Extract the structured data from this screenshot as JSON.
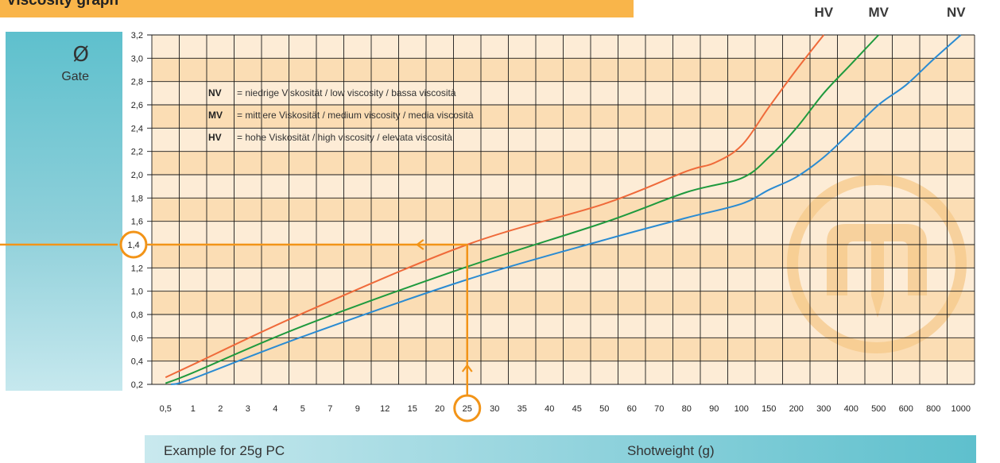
{
  "title": "Viscosity graph",
  "gate": {
    "symbol": "Ø",
    "label": "Gate"
  },
  "bottom": {
    "example": "Example for 25g PC",
    "axis_title": "Shotweight (g)"
  },
  "colors": {
    "hv": "#ef6a3a",
    "mv": "#1f9a3e",
    "nv": "#2a8bd2",
    "marker": "#f29418",
    "band_light": "#fdecd6",
    "band_dark": "#fbddb4",
    "watermark": "#f6c98a"
  },
  "chart_data": {
    "type": "line",
    "title": "Viscosity graph",
    "xlabel": "Shotweight (g)",
    "ylabel": "Ø Gate",
    "x_ticks": [
      "0,5",
      "1",
      "2",
      "3",
      "4",
      "5",
      "7",
      "9",
      "12",
      "15",
      "20",
      "25",
      "30",
      "35",
      "40",
      "45",
      "50",
      "60",
      "70",
      "80",
      "90",
      "100",
      "150",
      "200",
      "300",
      "400",
      "500",
      "600",
      "800",
      "1000"
    ],
    "y_ticks": [
      "0,2",
      "0,4",
      "0,6",
      "0,8",
      "1,0",
      "1,2",
      "1,4",
      "1,6",
      "1,8",
      "2,0",
      "2,2",
      "2,4",
      "2,6",
      "2,8",
      "3,0",
      "3,2"
    ],
    "ylim": [
      0.2,
      3.2
    ],
    "grid": true,
    "top_labels": [
      {
        "text": "HV",
        "x": 300
      },
      {
        "text": "MV",
        "x": 500
      },
      {
        "text": "NV",
        "x": 1000
      }
    ],
    "legend": [
      {
        "key": "NV",
        "text": "= niedrige Viskosität / low viscosity / bassa viscosità"
      },
      {
        "key": "MV",
        "text": "= mittlere Viskosität / medium viscosity / media viscosità"
      },
      {
        "key": "HV",
        "text": "= hohe Viskosität / high viscosity / elevata viscosità"
      }
    ],
    "series": [
      {
        "name": "HV",
        "color": "#ef6a3a",
        "points": [
          [
            0.5,
            0.26
          ],
          [
            1,
            0.37
          ],
          [
            5,
            0.81
          ],
          [
            25,
            1.4
          ],
          [
            50,
            1.75
          ],
          [
            80,
            2.03
          ],
          [
            90,
            2.1
          ],
          [
            100,
            2.25
          ],
          [
            150,
            2.58
          ],
          [
            200,
            2.9
          ],
          [
            300,
            3.2
          ]
        ]
      },
      {
        "name": "MV",
        "color": "#1f9a3e",
        "points": [
          [
            0.5,
            0.21
          ],
          [
            1,
            0.3
          ],
          [
            5,
            0.7
          ],
          [
            25,
            1.21
          ],
          [
            50,
            1.59
          ],
          [
            80,
            1.85
          ],
          [
            100,
            1.97
          ],
          [
            150,
            2.15
          ],
          [
            200,
            2.4
          ],
          [
            300,
            2.7
          ],
          [
            400,
            2.95
          ],
          [
            500,
            3.2
          ]
        ]
      },
      {
        "name": "NV",
        "color": "#2a8bd2",
        "points": [
          [
            0.6,
            0.2
          ],
          [
            1,
            0.25
          ],
          [
            5,
            0.61
          ],
          [
            25,
            1.1
          ],
          [
            50,
            1.44
          ],
          [
            80,
            1.63
          ],
          [
            100,
            1.75
          ],
          [
            150,
            1.87
          ],
          [
            200,
            1.98
          ],
          [
            300,
            2.15
          ],
          [
            400,
            2.37
          ],
          [
            500,
            2.6
          ],
          [
            600,
            2.77
          ],
          [
            800,
            2.99
          ],
          [
            1000,
            3.2
          ]
        ]
      }
    ],
    "example": {
      "x": 25,
      "y": 1.4,
      "x_label": "25",
      "y_label": "1,4"
    }
  }
}
